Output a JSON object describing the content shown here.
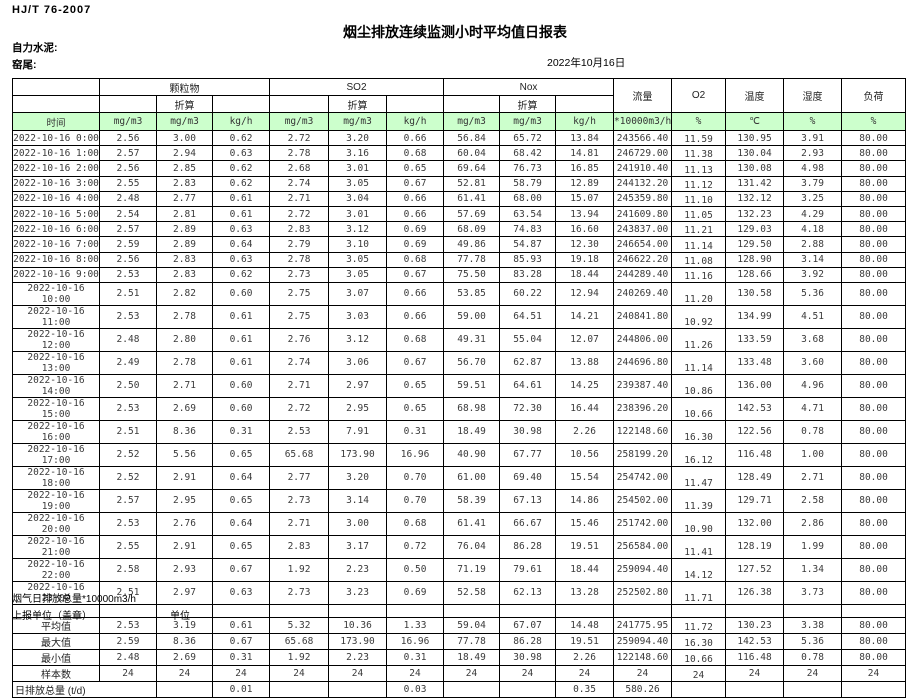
{
  "page": {
    "standard": "HJ/T  76-2007",
    "title": "烟尘排放连续监测小时平均值日报表",
    "company": "自力水泥:",
    "kiln": "窑尾:",
    "date": "2022年10月16日"
  },
  "table": {
    "group_labels": {
      "pm": "颗粒物",
      "so2": "SO2",
      "nox": "Nox",
      "flow": "流量",
      "o2": "O2",
      "temp": "温度",
      "humidity": "湿度",
      "load": "负荷"
    },
    "converted_label": "折算",
    "time_label": "时间",
    "unit_cells": [
      "mg/m3",
      "mg/m3",
      "kg/h",
      "mg/m3",
      "mg/m3",
      "kg/h",
      "mg/m3",
      "mg/m3",
      "kg/h",
      "*10000m3/h",
      "%",
      "℃",
      "%",
      "%"
    ],
    "rows": [
      {
        "time": "2022-10-16 0:00",
        "values": [
          "2.56",
          "3.00",
          "0.62",
          "2.72",
          "3.20",
          "0.66",
          "56.84",
          "65.72",
          "13.84",
          "243566.40",
          "11.59",
          "130.95",
          "3.91",
          "80.00"
        ]
      },
      {
        "time": "2022-10-16 1:00",
        "values": [
          "2.57",
          "2.94",
          "0.63",
          "2.78",
          "3.16",
          "0.68",
          "60.04",
          "68.42",
          "14.81",
          "246729.00",
          "11.38",
          "130.04",
          "2.93",
          "80.00"
        ]
      },
      {
        "time": "2022-10-16 2:00",
        "values": [
          "2.56",
          "2.85",
          "0.62",
          "2.68",
          "3.01",
          "0.65",
          "69.64",
          "76.73",
          "16.85",
          "241910.40",
          "11.13",
          "130.08",
          "4.98",
          "80.00"
        ]
      },
      {
        "time": "2022-10-16 3:00",
        "values": [
          "2.55",
          "2.83",
          "0.62",
          "2.74",
          "3.05",
          "0.67",
          "52.81",
          "58.79",
          "12.89",
          "244132.20",
          "11.12",
          "131.42",
          "3.79",
          "80.00"
        ]
      },
      {
        "time": "2022-10-16 4:00",
        "values": [
          "2.48",
          "2.77",
          "0.61",
          "2.71",
          "3.04",
          "0.66",
          "61.41",
          "68.00",
          "15.07",
          "245359.80",
          "11.10",
          "132.12",
          "3.25",
          "80.00"
        ]
      },
      {
        "time": "2022-10-16 5:00",
        "values": [
          "2.54",
          "2.81",
          "0.61",
          "2.72",
          "3.01",
          "0.66",
          "57.69",
          "63.54",
          "13.94",
          "241609.80",
          "11.05",
          "132.23",
          "4.29",
          "80.00"
        ]
      },
      {
        "time": "2022-10-16 6:00",
        "values": [
          "2.57",
          "2.89",
          "0.63",
          "2.83",
          "3.12",
          "0.69",
          "68.09",
          "74.83",
          "16.60",
          "243837.00",
          "11.21",
          "129.03",
          "4.18",
          "80.00"
        ]
      },
      {
        "time": "2022-10-16 7:00",
        "values": [
          "2.59",
          "2.89",
          "0.64",
          "2.79",
          "3.10",
          "0.69",
          "49.86",
          "54.87",
          "12.30",
          "246654.00",
          "11.14",
          "129.50",
          "2.88",
          "80.00"
        ]
      },
      {
        "time": "2022-10-16 8:00",
        "values": [
          "2.56",
          "2.83",
          "0.63",
          "2.78",
          "3.05",
          "0.68",
          "77.78",
          "85.93",
          "19.18",
          "246622.20",
          "11.08",
          "128.90",
          "3.14",
          "80.00"
        ]
      },
      {
        "time": "2022-10-16 9:00",
        "values": [
          "2.53",
          "2.83",
          "0.62",
          "2.73",
          "3.05",
          "0.67",
          "75.50",
          "83.28",
          "18.44",
          "244289.40",
          "11.16",
          "128.66",
          "3.92",
          "80.00"
        ]
      },
      {
        "time": "2022-10-16 10:00",
        "values": [
          "2.51",
          "2.82",
          "0.60",
          "2.75",
          "3.07",
          "0.66",
          "53.85",
          "60.22",
          "12.94",
          "240269.40",
          "11.20",
          "130.58",
          "5.36",
          "80.00"
        ]
      },
      {
        "time": "2022-10-16 11:00",
        "values": [
          "2.53",
          "2.78",
          "0.61",
          "2.75",
          "3.03",
          "0.66",
          "59.00",
          "64.51",
          "14.21",
          "240841.80",
          "10.92",
          "134.99",
          "4.51",
          "80.00"
        ]
      },
      {
        "time": "2022-10-16 12:00",
        "values": [
          "2.48",
          "2.80",
          "0.61",
          "2.76",
          "3.12",
          "0.68",
          "49.31",
          "55.04",
          "12.07",
          "244806.00",
          "11.26",
          "133.59",
          "3.68",
          "80.00"
        ]
      },
      {
        "time": "2022-10-16 13:00",
        "values": [
          "2.49",
          "2.78",
          "0.61",
          "2.74",
          "3.06",
          "0.67",
          "56.70",
          "62.87",
          "13.88",
          "244696.80",
          "11.14",
          "133.48",
          "3.60",
          "80.00"
        ]
      },
      {
        "time": "2022-10-16 14:00",
        "values": [
          "2.50",
          "2.71",
          "0.60",
          "2.71",
          "2.97",
          "0.65",
          "59.51",
          "64.61",
          "14.25",
          "239387.40",
          "10.86",
          "136.00",
          "4.96",
          "80.00"
        ]
      },
      {
        "time": "2022-10-16 15:00",
        "values": [
          "2.53",
          "2.69",
          "0.60",
          "2.72",
          "2.95",
          "0.65",
          "68.98",
          "72.30",
          "16.44",
          "238396.20",
          "10.66",
          "142.53",
          "4.71",
          "80.00"
        ]
      },
      {
        "time": "2022-10-16 16:00",
        "values": [
          "2.51",
          "8.36",
          "0.31",
          "2.53",
          "7.91",
          "0.31",
          "18.49",
          "30.98",
          "2.26",
          "122148.60",
          "16.30",
          "122.56",
          "0.78",
          "80.00"
        ]
      },
      {
        "time": "2022-10-16 17:00",
        "values": [
          "2.52",
          "5.56",
          "0.65",
          "65.68",
          "173.90",
          "16.96",
          "40.90",
          "67.77",
          "10.56",
          "258199.20",
          "16.12",
          "116.48",
          "1.00",
          "80.00"
        ]
      },
      {
        "time": "2022-10-16 18:00",
        "values": [
          "2.52",
          "2.91",
          "0.64",
          "2.77",
          "3.20",
          "0.70",
          "61.00",
          "69.40",
          "15.54",
          "254742.00",
          "11.47",
          "128.49",
          "2.71",
          "80.00"
        ]
      },
      {
        "time": "2022-10-16 19:00",
        "values": [
          "2.57",
          "2.95",
          "0.65",
          "2.73",
          "3.14",
          "0.70",
          "58.39",
          "67.13",
          "14.86",
          "254502.00",
          "11.39",
          "129.71",
          "2.58",
          "80.00"
        ]
      },
      {
        "time": "2022-10-16 20:00",
        "values": [
          "2.53",
          "2.76",
          "0.64",
          "2.71",
          "3.00",
          "0.68",
          "61.41",
          "66.67",
          "15.46",
          "251742.00",
          "10.90",
          "132.00",
          "2.86",
          "80.00"
        ]
      },
      {
        "time": "2022-10-16 21:00",
        "values": [
          "2.55",
          "2.91",
          "0.65",
          "2.83",
          "3.17",
          "0.72",
          "76.04",
          "86.28",
          "19.51",
          "256584.00",
          "11.41",
          "128.19",
          "1.99",
          "80.00"
        ]
      },
      {
        "time": "2022-10-16 22:00",
        "values": [
          "2.58",
          "2.93",
          "0.67",
          "1.92",
          "2.23",
          "0.50",
          "71.19",
          "79.61",
          "18.44",
          "259094.40",
          "14.12",
          "127.52",
          "1.34",
          "80.00"
        ]
      },
      {
        "time": "2022-10-16 23:00",
        "values": [
          "2.51",
          "2.97",
          "0.63",
          "2.73",
          "3.23",
          "0.69",
          "52.58",
          "62.13",
          "13.28",
          "252502.80",
          "11.71",
          "126.38",
          "3.73",
          "80.00"
        ]
      }
    ],
    "summary_rows": [
      {
        "label": "平均值",
        "values": [
          "2.53",
          "3.19",
          "0.61",
          "5.32",
          "10.36",
          "1.33",
          "59.04",
          "67.07",
          "14.48",
          "241775.95",
          "11.72",
          "130.23",
          "3.38",
          "80.00"
        ]
      },
      {
        "label": "最大值",
        "values": [
          "2.59",
          "8.36",
          "0.67",
          "65.68",
          "173.90",
          "16.96",
          "77.78",
          "86.28",
          "19.51",
          "259094.40",
          "16.30",
          "142.53",
          "5.36",
          "80.00"
        ]
      },
      {
        "label": "最小值",
        "values": [
          "2.48",
          "2.69",
          "0.31",
          "1.92",
          "2.23",
          "0.31",
          "18.49",
          "30.98",
          "2.26",
          "122148.60",
          "10.66",
          "116.48",
          "0.78",
          "80.00"
        ]
      },
      {
        "label": "样本数",
        "values": [
          "24",
          "24",
          "24",
          "24",
          "24",
          "24",
          "24",
          "24",
          "24",
          "24",
          "24",
          "24",
          "24",
          "24"
        ]
      }
    ],
    "daily_total_row": {
      "label": "日排放总量 (t/d)",
      "cells": [
        "",
        "0.01",
        "",
        "",
        "0.03",
        "",
        "",
        "0.35",
        "580.26",
        "",
        "",
        "",
        ""
      ]
    }
  },
  "footer": {
    "flue_gas_total": "烟气日排放总量*10000m3/h",
    "report_unit": "上报单位（盖章）",
    "unit_label": "单位"
  },
  "colors": {
    "units_row_bg": "#ccffcc",
    "border": "#000000",
    "text": "#3a3a3a"
  }
}
